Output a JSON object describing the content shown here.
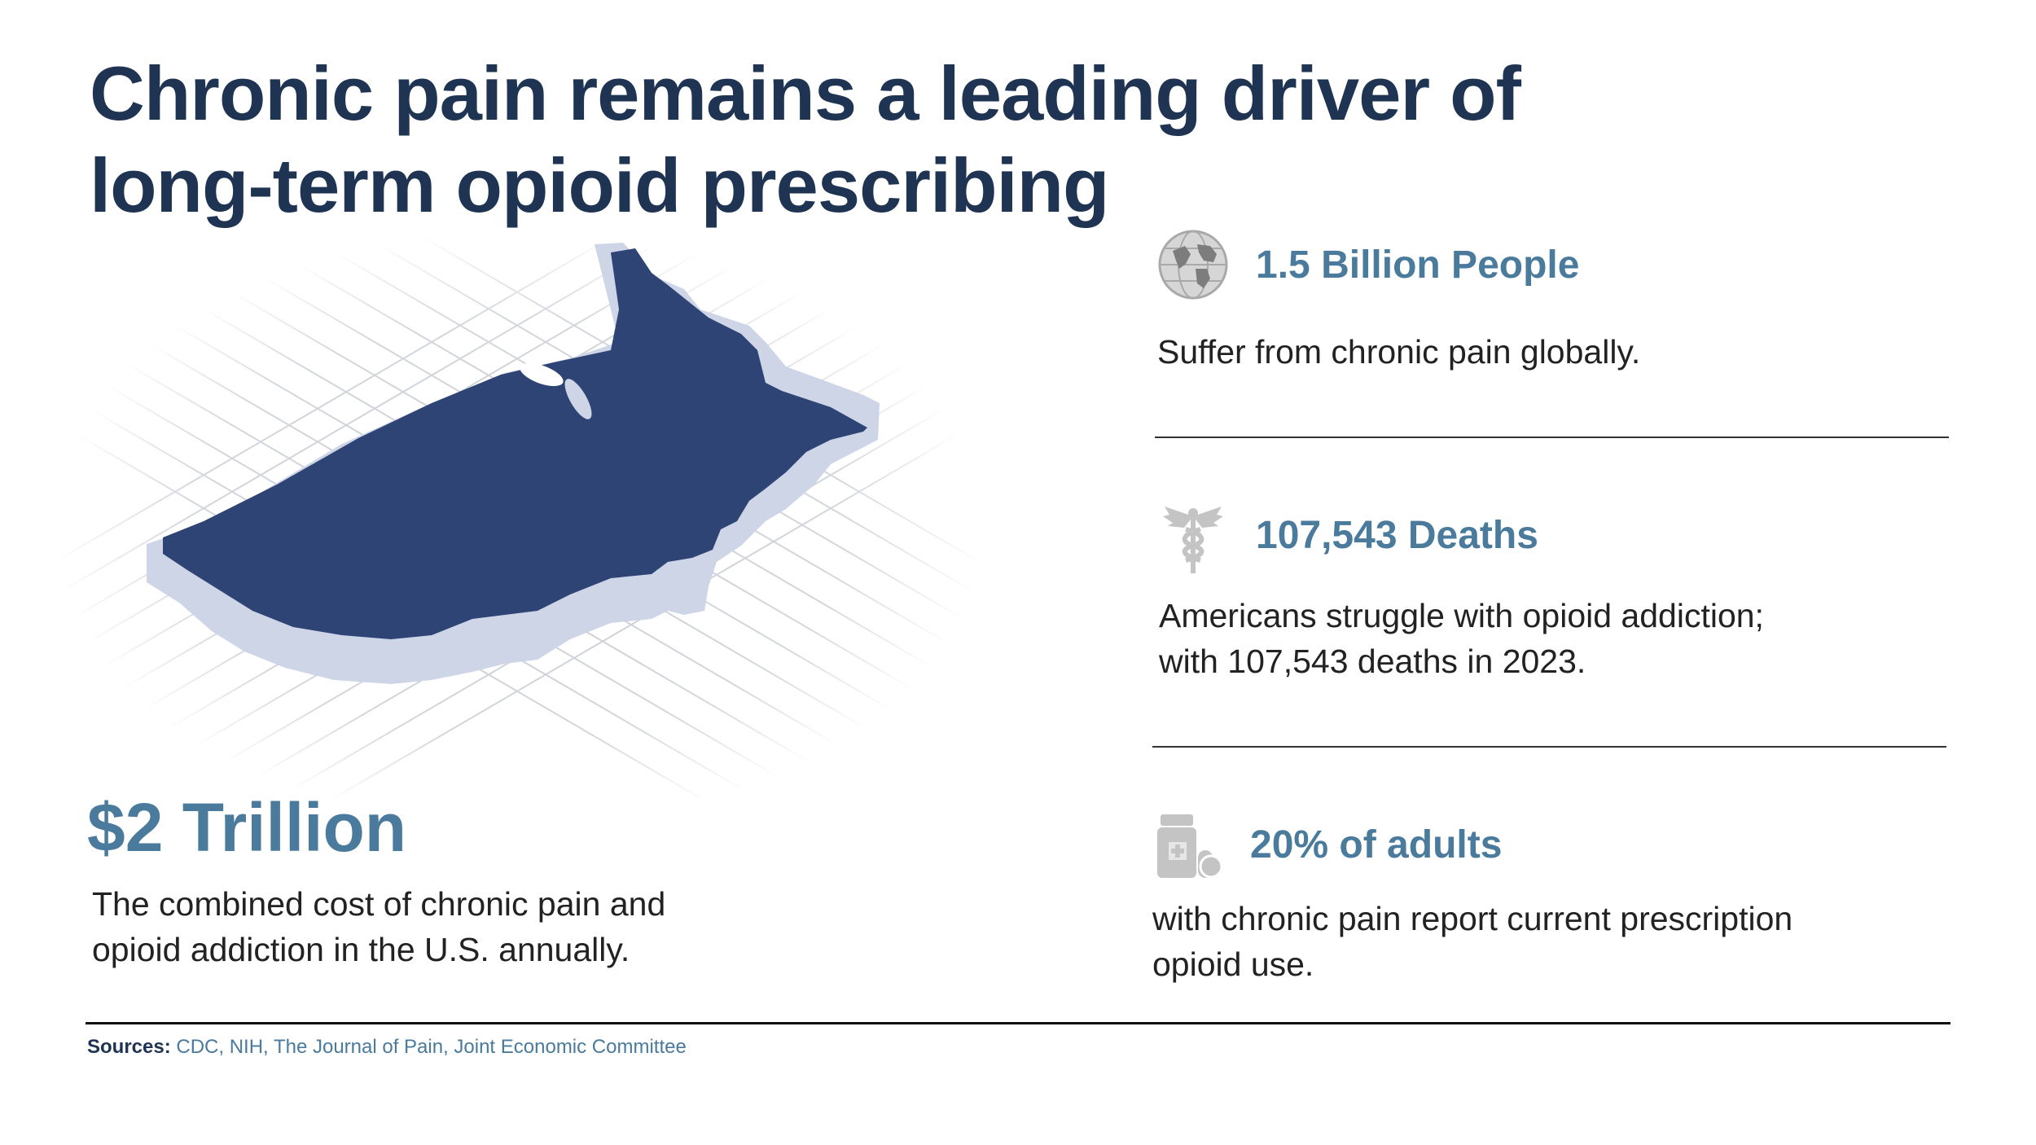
{
  "title": {
    "line1": "Chronic pain remains a leading driver of",
    "line2": "long-term opioid prescribing"
  },
  "headline_stat": {
    "value": "$2 Trillion",
    "line1": "The combined cost of chronic pain and",
    "line2": "opioid addiction in the U.S. annually."
  },
  "stats": [
    {
      "icon": "globe-icon",
      "heading": "1.5 Billion People",
      "line1": "Suffer from chronic pain globally."
    },
    {
      "icon": "caduceus-icon",
      "heading": "107,543 Deaths",
      "line1": "Americans struggle with opioid addiction;",
      "line2": "with 107,543 deaths in 2023."
    },
    {
      "icon": "pill-bottle-icon",
      "heading": "20% of adults",
      "line1": "with chronic pain report current prescription",
      "line2": "opioid use."
    }
  ],
  "footer": {
    "label": "Sources:",
    "text": "CDC, NIH, The Journal of Pain, Joint Economic Committee"
  },
  "colors": {
    "title": "#1f3452",
    "accent": "#4a7a9c",
    "map_fill": "#2e4475",
    "map_extrusion": "#cdd5e6",
    "icon_gray": "#c4c4c4"
  }
}
